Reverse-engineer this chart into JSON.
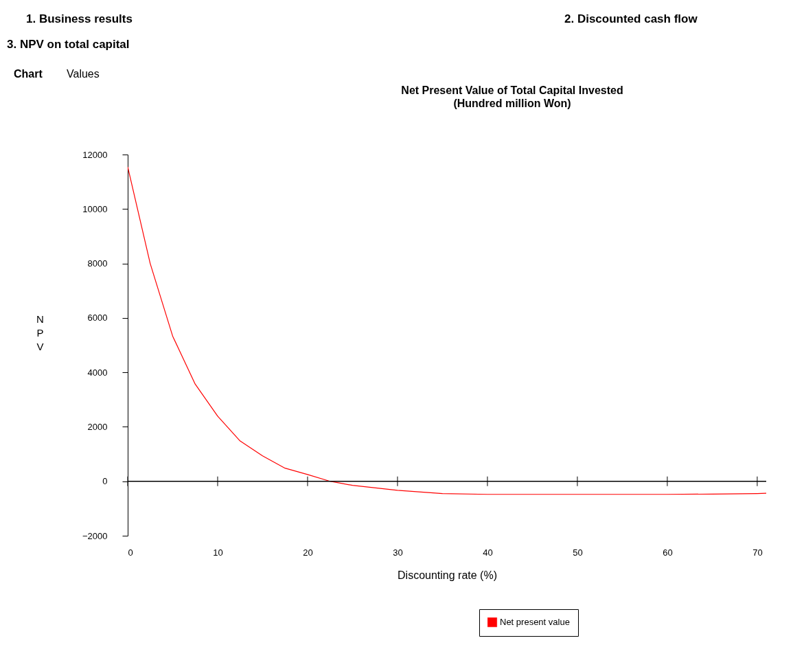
{
  "chart_data": {
    "type": "line",
    "title": "Net Present Value of Total Capital Invested",
    "subtitle": "(Hundred million Won)",
    "xlabel": "Discounting rate (%)",
    "ylabel": "NPV",
    "annotations": [
      "1. Business results",
      "2. Discounted cash flow",
      "3. NPV on total capital",
      "Chart",
      "Values"
    ],
    "x": [
      0,
      2.5,
      5,
      7.5,
      10,
      12.5,
      15,
      17.5,
      20,
      22.5,
      25,
      30,
      35,
      40,
      45,
      50,
      55,
      60,
      65,
      70,
      71
    ],
    "series": [
      {
        "name": "Net present value",
        "color": "#ff0000",
        "values": [
          11550,
          8000,
          5330,
          3570,
          2390,
          1480,
          930,
          480,
          250,
          0,
          -150,
          -330,
          -450,
          -480,
          -480,
          -480,
          -480,
          -480,
          -470,
          -450,
          -440
        ]
      }
    ],
    "xlim": [
      0,
      71
    ],
    "xticks": [
      0,
      10,
      20,
      30,
      40,
      50,
      60,
      70
    ],
    "ylim": [
      -2000,
      12000
    ],
    "yticks": [
      -2000,
      0,
      2000,
      4000,
      6000,
      8000,
      10000,
      12000
    ],
    "ref_lines": [
      {
        "axis": "y",
        "value": 0,
        "color": "#000000"
      }
    ],
    "grid": false,
    "legend": "bottom",
    "marker": "none",
    "line_style": "solid"
  }
}
